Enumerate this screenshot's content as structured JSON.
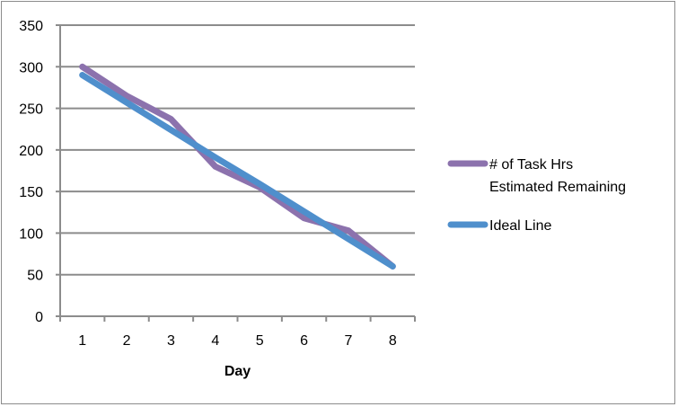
{
  "chart_data": {
    "type": "line",
    "title": "",
    "xlabel": "Day",
    "ylabel": "",
    "categories": [
      "1",
      "2",
      "3",
      "4",
      "5",
      "6",
      "7",
      "8"
    ],
    "ylim": [
      0,
      350
    ],
    "yticks": [
      0,
      50,
      100,
      150,
      200,
      250,
      300,
      350
    ],
    "grid": true,
    "legend_position": "right",
    "series": [
      {
        "name": "# of Task Hrs Estimated Remaining",
        "legend_lines": [
          "# of Task Hrs",
          "Estimated Remaining"
        ],
        "color": "#8c72ad",
        "values": [
          300,
          265,
          237,
          180,
          155,
          118,
          103,
          60
        ]
      },
      {
        "name": "Ideal Line",
        "legend_lines": [
          "Ideal Line"
        ],
        "color": "#4f8fcc",
        "values": [
          290,
          257,
          224,
          191,
          159,
          126,
          93,
          60
        ]
      }
    ]
  }
}
